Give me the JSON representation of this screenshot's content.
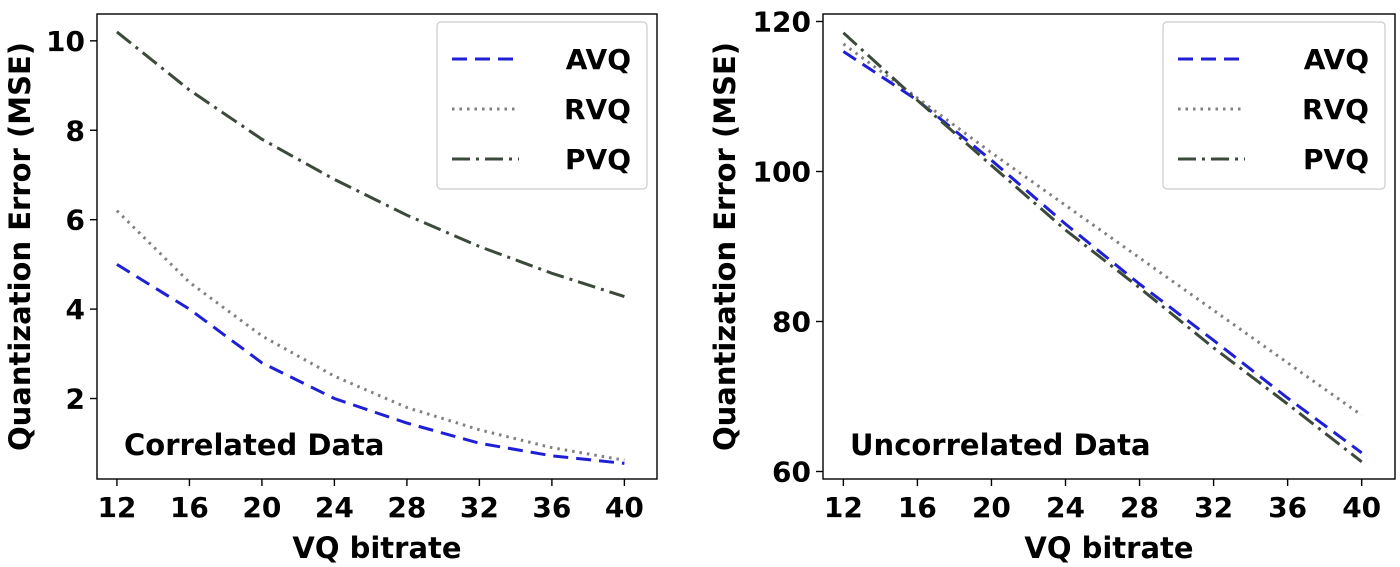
{
  "chart_data": [
    {
      "type": "line",
      "annotation": "Correlated Data",
      "xlabel": "VQ bitrate",
      "ylabel": "Quantization Error (MSE)",
      "xlim": [
        10.9,
        41.8
      ],
      "ylim": [
        0.2,
        10.6
      ],
      "xticks": [
        12,
        16,
        20,
        24,
        28,
        32,
        36,
        40
      ],
      "yticks": [
        2,
        4,
        6,
        8,
        10
      ],
      "legend_position": "top-right",
      "x": [
        12,
        16,
        20,
        24,
        28,
        32,
        36,
        40
      ],
      "series": [
        {
          "name": "AVQ",
          "color": "#1f1fd6",
          "style": "dashed",
          "values": [
            5.0,
            4.0,
            2.8,
            2.0,
            1.45,
            1.0,
            0.72,
            0.55
          ]
        },
        {
          "name": "RVQ",
          "color": "#808080",
          "style": "dotted",
          "values": [
            6.2,
            4.6,
            3.4,
            2.5,
            1.8,
            1.3,
            0.9,
            0.62
          ]
        },
        {
          "name": "PVQ",
          "color": "#3b4a3a",
          "style": "dashdot",
          "values": [
            10.2,
            8.9,
            7.8,
            6.9,
            6.1,
            5.4,
            4.8,
            4.28
          ]
        }
      ]
    },
    {
      "type": "line",
      "annotation": "Uncorrelated Data",
      "xlabel": "VQ bitrate",
      "ylabel": "Quantization Error (MSE)",
      "xlim": [
        10.9,
        41.8
      ],
      "ylim": [
        59,
        121
      ],
      "xticks": [
        12,
        16,
        20,
        24,
        28,
        32,
        36,
        40
      ],
      "yticks": [
        60,
        80,
        100,
        120
      ],
      "legend_position": "top-right",
      "x": [
        12,
        16,
        20,
        24,
        28,
        32,
        36,
        40
      ],
      "series": [
        {
          "name": "AVQ",
          "color": "#1f1fd6",
          "style": "dashed",
          "values": [
            116.0,
            109.5,
            101.5,
            93.0,
            85.0,
            77.5,
            69.8,
            62.5
          ]
        },
        {
          "name": "RVQ",
          "color": "#808080",
          "style": "dotted",
          "values": [
            117.0,
            109.8,
            102.5,
            95.5,
            88.5,
            81.5,
            74.5,
            67.5
          ]
        },
        {
          "name": "PVQ",
          "color": "#3b4a3a",
          "style": "dashdot",
          "values": [
            118.5,
            109.5,
            100.8,
            92.2,
            84.5,
            76.5,
            69.0,
            61.3
          ]
        }
      ]
    }
  ]
}
